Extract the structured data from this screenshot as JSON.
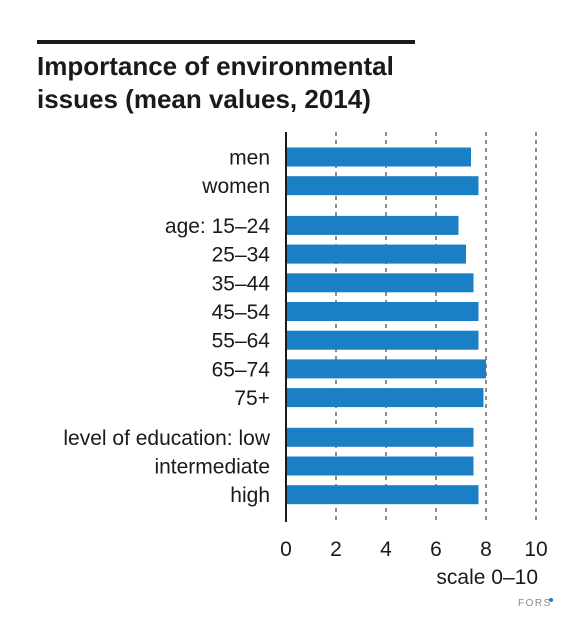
{
  "chart_data": {
    "type": "bar",
    "orientation": "horizontal",
    "title": "Importance of environmental issues (mean values, 2014)",
    "categories": [
      "men",
      "women",
      "age: 15–24",
      "25–34",
      "35–44",
      "45–54",
      "55–64",
      "65–74",
      "75+",
      "level of education: low",
      "intermediate",
      "high"
    ],
    "groups": [
      {
        "categories": [
          "men",
          "women"
        ]
      },
      {
        "categories": [
          "age: 15–24",
          "25–34",
          "35–44",
          "45–54",
          "55–64",
          "65–74",
          "75+"
        ]
      },
      {
        "categories": [
          "level of education: low",
          "intermediate",
          "high"
        ]
      }
    ],
    "values": [
      7.4,
      7.7,
      6.9,
      7.2,
      7.5,
      7.7,
      7.7,
      8.0,
      7.9,
      7.5,
      7.5,
      7.7
    ],
    "xlim": [
      0,
      10
    ],
    "xticks": [
      0,
      2,
      4,
      6,
      8,
      10
    ],
    "xlabel": "scale 0–10",
    "ylabel": "",
    "grid": "vertical dashed",
    "bar_color": "#1a7fc4"
  },
  "footer": {
    "logo_text": "FORS"
  },
  "colors": {
    "bar": "#1a7fc4",
    "text": "#1a1a1a",
    "grid": "#444444"
  }
}
